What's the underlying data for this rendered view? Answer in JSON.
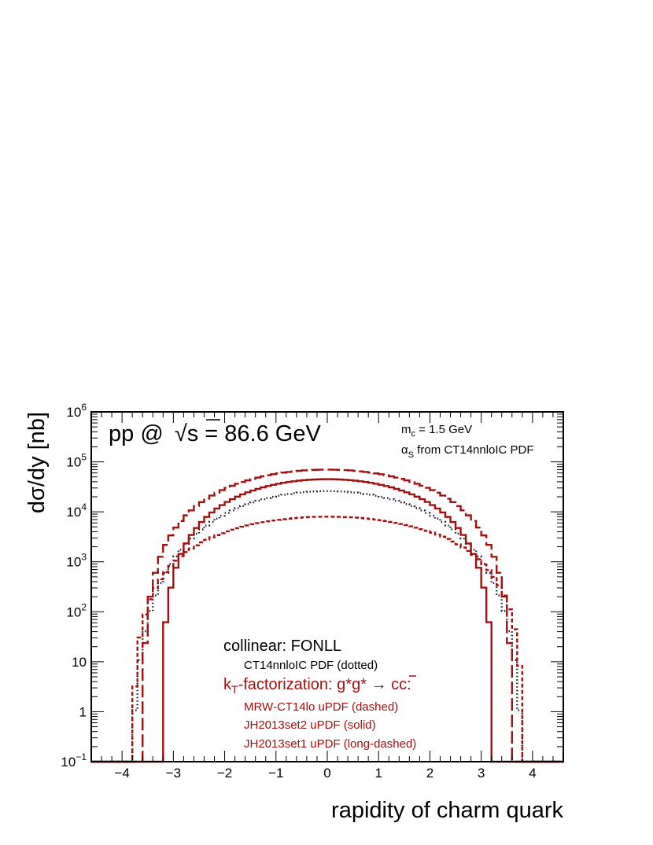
{
  "chart_data": {
    "type": "line",
    "drawstyle": "histogram-step",
    "title": "",
    "xlabel": "rapidity of charm quark",
    "ylabel": "dσ/dy   [nb]",
    "xlim": [
      -4.6,
      4.6
    ],
    "ylim": [
      0.1,
      1000000
    ],
    "yscale": "log",
    "grid": false,
    "bin_width": 0.1,
    "x_tick_labels": [
      "−4",
      "−3",
      "−2",
      "−1",
      "0",
      "1",
      "2",
      "3",
      "4"
    ],
    "x_tick_values": [
      -4,
      -3,
      -2,
      -1,
      0,
      1,
      2,
      3,
      4
    ],
    "y_tick_values": [
      0.1,
      1,
      10,
      100,
      1000,
      10000,
      100000,
      1000000
    ],
    "y_tick_labels": [
      {
        "base": "10",
        "exp": "−1"
      },
      {
        "base": "1",
        "exp": ""
      },
      {
        "base": "10",
        "exp": ""
      },
      {
        "base": "10",
        "exp": "2"
      },
      {
        "base": "10",
        "exp": "3"
      },
      {
        "base": "10",
        "exp": "4"
      },
      {
        "base": "10",
        "exp": "5"
      },
      {
        "base": "10",
        "exp": "6"
      }
    ],
    "series": [
      {
        "style": "dotted",
        "color": "#1a1a2e",
        "ymax": 26000,
        "edge": 3.85,
        "p": 3.4,
        "skew": 0.0
      },
      {
        "style": "dashed",
        "color": "#a01010",
        "ymax": 8000,
        "edge": 3.82,
        "p": 2.2,
        "skew": 0.15
      },
      {
        "style": "solid",
        "color": "#a01010",
        "ymax": 45000,
        "edge": 3.25,
        "p": 2.35,
        "skew": 0.0
      },
      {
        "style": "long-dashed",
        "color": "#a01010",
        "ymax": 70000,
        "edge": 3.62,
        "p": 2.45,
        "skew": 0.0
      }
    ],
    "annotations": {
      "process_left": "pp @ ",
      "process_sqrt": "√",
      "process_right": "s = 86.6 GeV",
      "mass_sym": "m",
      "mass_sub": "c",
      "mass_val": " = 1.5 GeV",
      "alpha_sym": "α",
      "alpha_sub": "S",
      "alpha_val": " from CT14nnloIC PDF",
      "collinear_header": "collinear: FONLL",
      "collinear_entry": "CT14nnloIC PDF (dotted)",
      "kt_k": "k",
      "kt_sub": "T",
      "kt_rest": "-factorization: g*g* → c",
      "kt_cbar": "c",
      "kt_colon": ":",
      "kt_entry_1": "MRW-CT14lo uPDF (dashed)",
      "kt_entry_2": "JH2013set2 uPDF (solid)",
      "kt_entry_3": "JH2013set1 uPDF (long-dashed)"
    }
  }
}
